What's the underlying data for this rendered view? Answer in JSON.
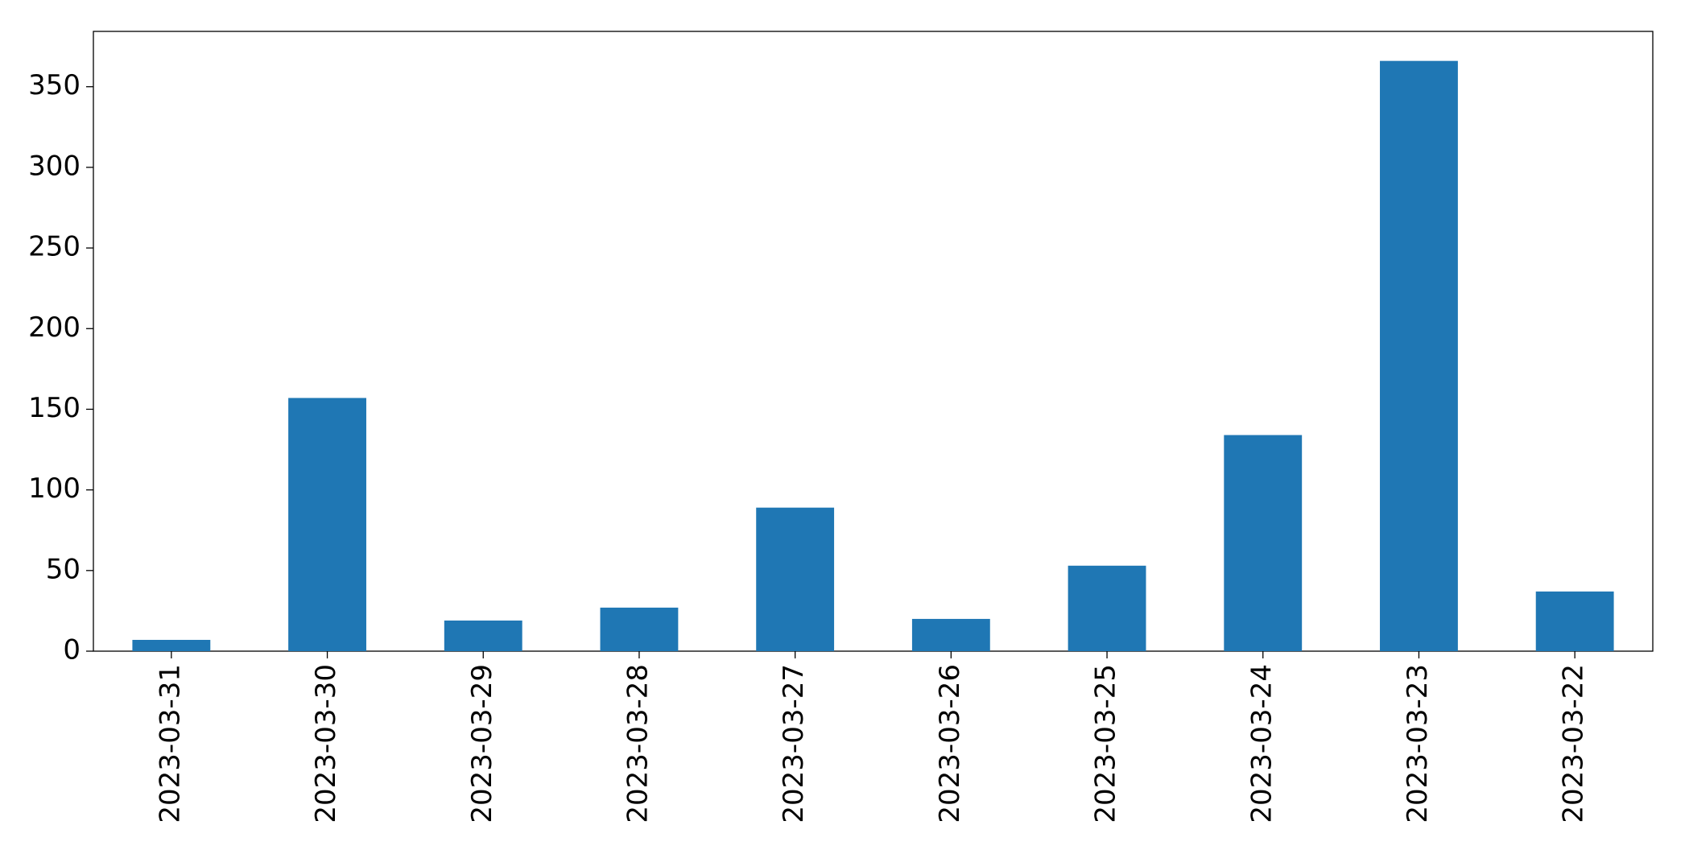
{
  "chart_data": {
    "type": "bar",
    "categories": [
      "2023-03-31",
      "2023-03-30",
      "2023-03-29",
      "2023-03-28",
      "2023-03-27",
      "2023-03-26",
      "2023-03-25",
      "2023-03-24",
      "2023-03-23",
      "2023-03-22"
    ],
    "values": [
      7,
      157,
      19,
      27,
      89,
      20,
      53,
      134,
      366,
      37
    ],
    "color": "#1f77b4",
    "ylim": [
      0,
      384.3
    ],
    "yticks": [
      0,
      50,
      100,
      150,
      200,
      250,
      300,
      350
    ],
    "grid": false
  }
}
